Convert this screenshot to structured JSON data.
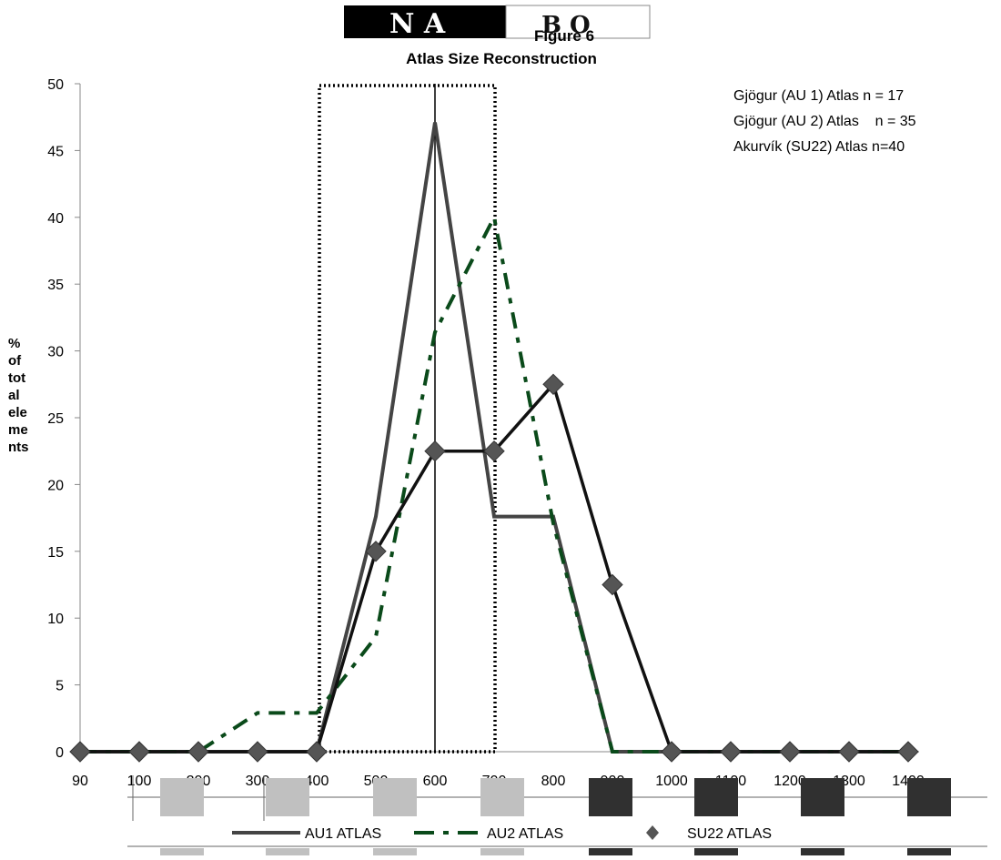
{
  "header_logo": {
    "left_text": "N A",
    "right_text": "B O"
  },
  "chart_data": {
    "type": "line",
    "title": "Figure 6",
    "subtitle": "Atlas Size Reconstruction",
    "ylabel": "% of tot al ele me nts",
    "ylabel_lines": [
      "%",
      "of",
      "tot",
      "al",
      "ele",
      "me",
      "nts"
    ],
    "xlabel": "",
    "categories": [
      "90",
      "100",
      "200",
      "300",
      "400",
      "500",
      "600",
      "700",
      "800",
      "900",
      "1000",
      "1100",
      "1200",
      "1300",
      "1400"
    ],
    "ylim": [
      0,
      50
    ],
    "yticks": [
      0,
      5,
      10,
      15,
      20,
      25,
      30,
      35,
      40,
      45,
      50
    ],
    "grid": false,
    "legend_position": "bottom",
    "series": [
      {
        "name": "AU1 ATLAS",
        "color": "#444444",
        "style": "solid",
        "marker": "none",
        "values": [
          0,
          0,
          0,
          0,
          0,
          17.6,
          47.1,
          17.6,
          17.6,
          0,
          0,
          0,
          0,
          0,
          0
        ]
      },
      {
        "name": "AU2 ATLAS",
        "color": "#0a4a1a",
        "style": "dashed",
        "marker": "none",
        "values": [
          0,
          0,
          0,
          2.9,
          2.9,
          8.6,
          31.4,
          40.0,
          17.1,
          0,
          0,
          0,
          0,
          0,
          0
        ]
      },
      {
        "name": "SU22 ATLAS",
        "color": "#111111",
        "style": "solid",
        "marker": "diamond",
        "values": [
          0,
          0,
          0,
          0,
          0,
          15.0,
          22.5,
          22.5,
          27.5,
          12.5,
          0,
          0,
          0,
          0,
          0
        ]
      }
    ],
    "annotations": [
      "Gjögur (AU 1) Atlas n = 17",
      "Gjögur (AU 2) Atlas    n = 35",
      "Akurvík (SU22) Atlas n=40"
    ],
    "highlight_range": {
      "from": "400",
      "to": "700",
      "style": "dotted-box"
    },
    "reference_line": {
      "at": "600"
    },
    "swatch_row_colors": [
      "#c0c0c0",
      "#c0c0c0",
      "#c0c0c0",
      "#c0c0c0",
      "#303030",
      "#303030",
      "#303030",
      "#303030"
    ]
  }
}
